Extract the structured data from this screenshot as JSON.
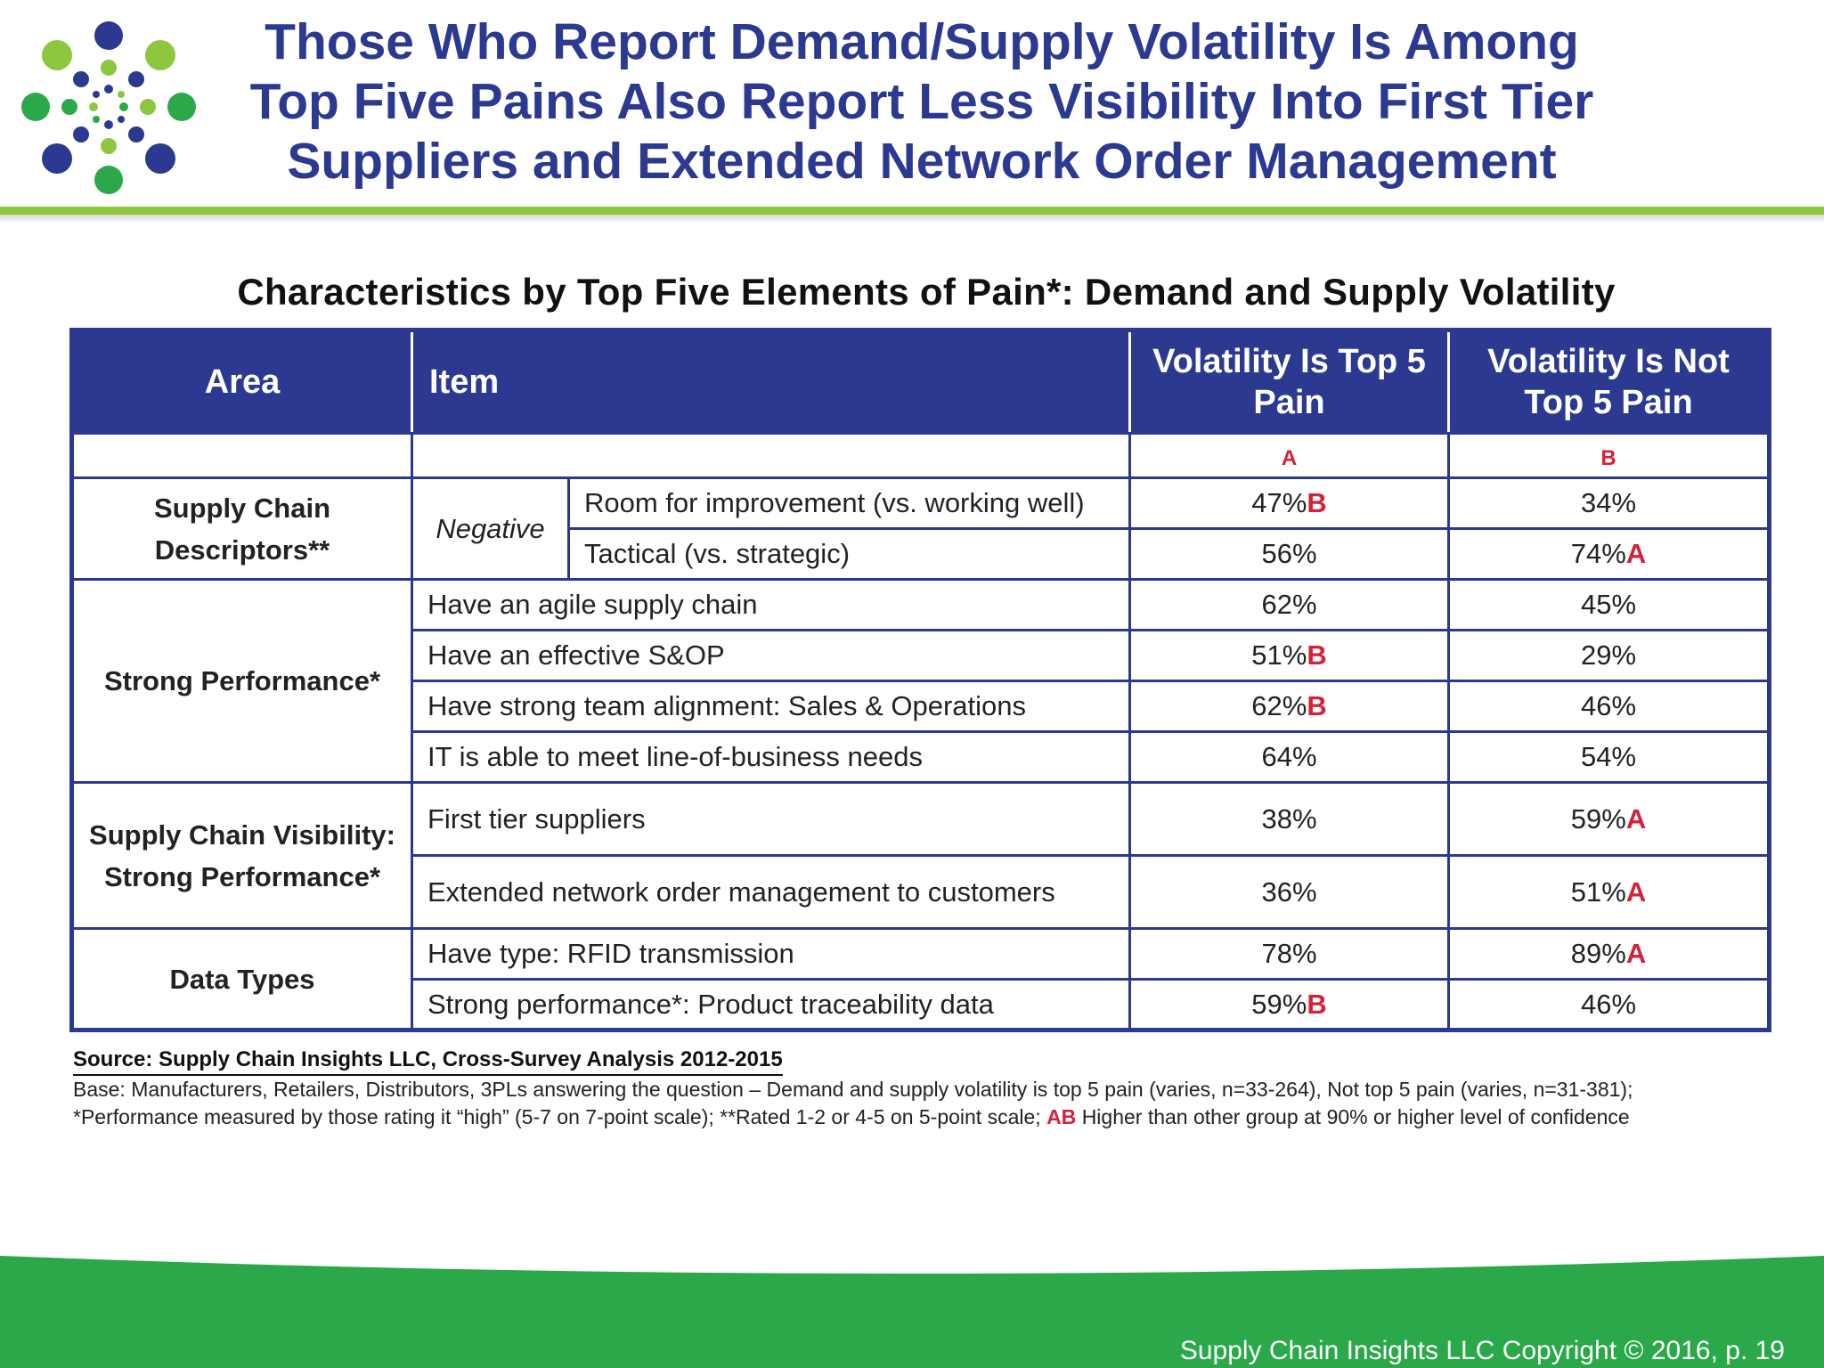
{
  "header": {
    "title_lines": [
      "Those Who Report Demand/Supply Volatility Is Among",
      "Top Five Pains Also Report Less Visibility Into First Tier",
      "Suppliers and Extended Network Order Management"
    ]
  },
  "colors": {
    "brand_blue": "#2b3990",
    "brand_green": "#8dc63f",
    "footer_green": "#2aa84a",
    "significance_red": "#d6213a"
  },
  "table": {
    "caption": "Characteristics by Top Five Elements of Pain*: Demand and Supply Volatility",
    "headers": {
      "area": "Area",
      "item": "Item",
      "col_a": "Volatility Is Top 5 Pain",
      "col_b": "Volatility Is Not Top 5 Pain"
    },
    "markers": {
      "col_a": "A",
      "col_b": "B"
    },
    "groups": [
      {
        "area": "Supply Chain Descriptors**",
        "subgroup": "Negative",
        "rows": [
          {
            "item": "Room for improvement (vs. working well)",
            "a": "47%",
            "a_sig": "B",
            "b": "34%",
            "b_sig": ""
          },
          {
            "item": "Tactical (vs. strategic)",
            "a": "56%",
            "a_sig": "",
            "b": "74%",
            "b_sig": "A"
          }
        ]
      },
      {
        "area": "Strong Performance*",
        "rows": [
          {
            "item": "Have an agile supply chain",
            "a": "62%",
            "a_sig": "",
            "b": "45%",
            "b_sig": ""
          },
          {
            "item": "Have an effective S&OP",
            "a": "51%",
            "a_sig": "B",
            "b": "29%",
            "b_sig": ""
          },
          {
            "item": "Have strong team alignment:  Sales & Operations",
            "a": "62%",
            "a_sig": "B",
            "b": "46%",
            "b_sig": ""
          },
          {
            "item": "IT is able to meet line-of-business needs",
            "a": "64%",
            "a_sig": "",
            "b": "54%",
            "b_sig": ""
          }
        ]
      },
      {
        "area": "Supply Chain Visibility: Strong Performance*",
        "rows": [
          {
            "item": "First tier suppliers",
            "a": "38%",
            "a_sig": "",
            "b": "59%",
            "b_sig": "A"
          },
          {
            "item": "Extended network order management to customers",
            "a": "36%",
            "a_sig": "",
            "b": "51%",
            "b_sig": "A"
          }
        ]
      },
      {
        "area": "Data Types",
        "rows": [
          {
            "item": "Have type:  RFID transmission",
            "a": "78%",
            "a_sig": "",
            "b": "89%",
            "b_sig": "A"
          },
          {
            "item": "Strong performance*:  Product traceability data",
            "a": "59%",
            "a_sig": "B",
            "b": "46%",
            "b_sig": ""
          }
        ]
      }
    ]
  },
  "notes": {
    "source": "Source:  Supply Chain Insights LLC, Cross-Survey Analysis 2012-2015",
    "base_before_ab": "Base:  Manufacturers, Retailers, Distributors, 3PLs answering the question – Demand and supply volatility is top 5 pain (varies, n=33-264), Not top 5 pain (varies, n=31-381); *Performance measured by those rating it “high” (5-7 on 7-point scale); **Rated 1-2 or 4-5 on 5-point scale;",
    "ab_marker": "AB",
    "base_after_ab": "Higher than other group at 90% or higher level of confidence"
  },
  "footer": {
    "copyright": "Supply Chain Insights LLC Copyright © 2016, p. 19"
  }
}
